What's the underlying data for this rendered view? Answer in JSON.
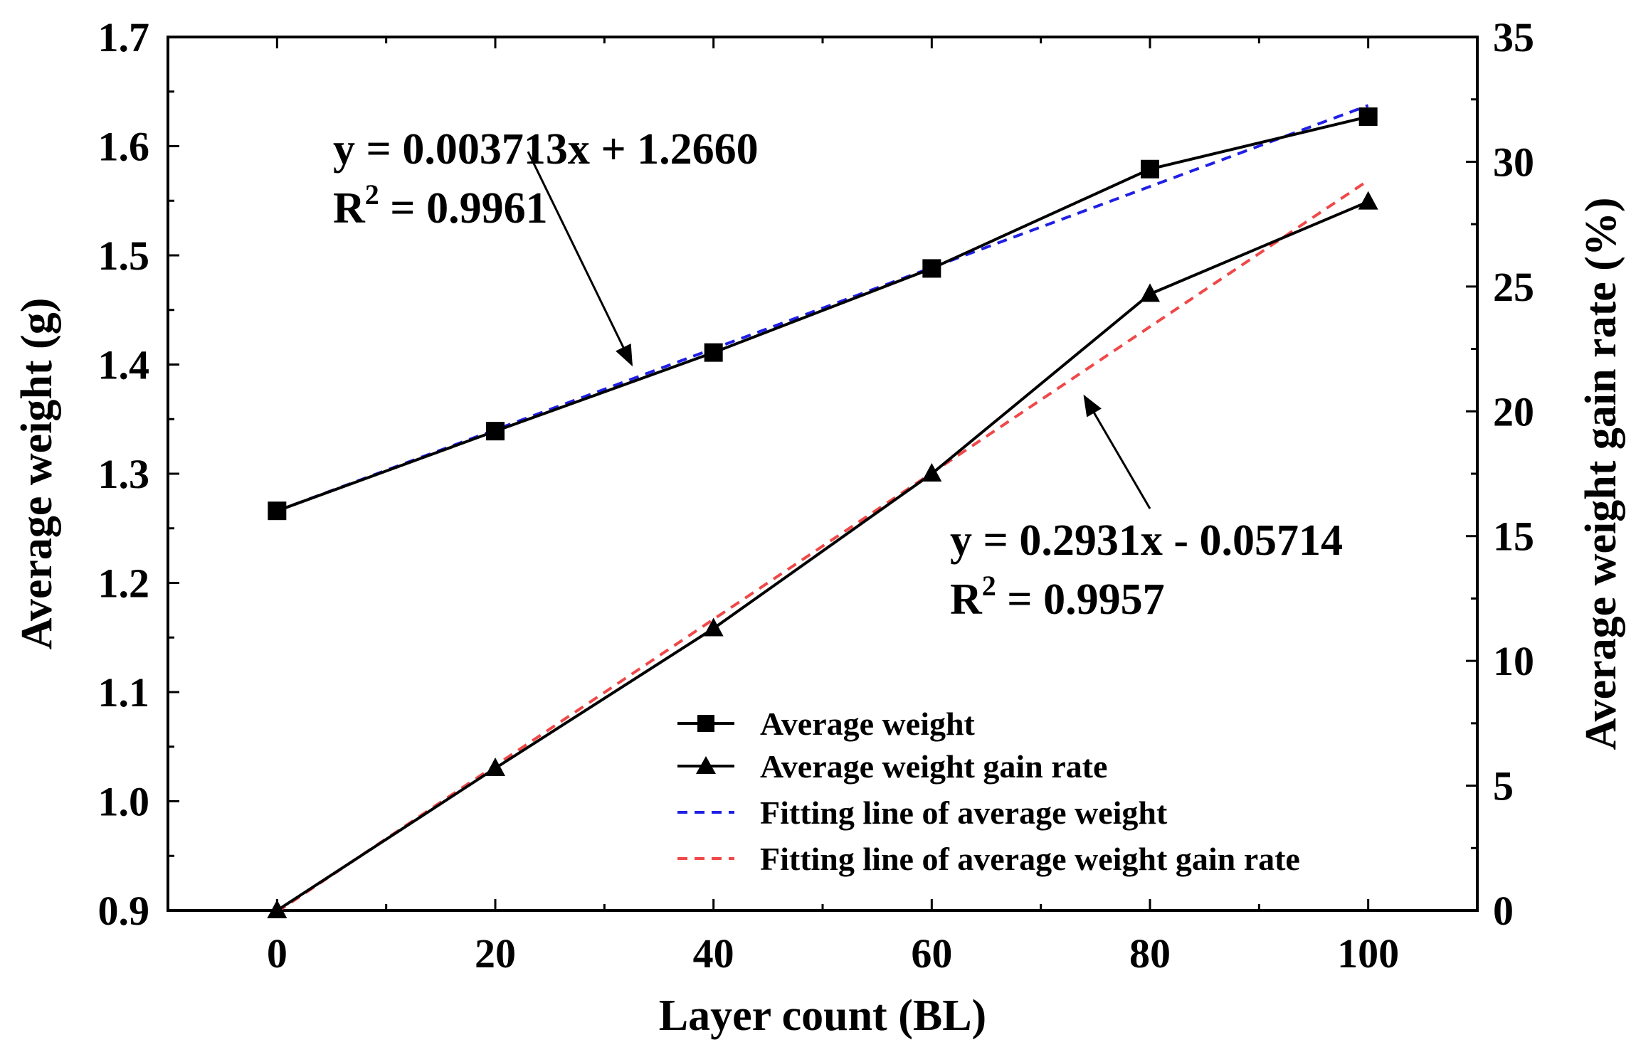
{
  "chart_data": {
    "type": "line",
    "xlabel": "Layer count (BL)",
    "ylabel": "Average weight (g)",
    "y2label": "Average weight gain rate (%)",
    "xlim": [
      -10,
      110
    ],
    "ylim": [
      0.9,
      1.7
    ],
    "y2lim": [
      0,
      35
    ],
    "x_ticks": [
      0,
      20,
      40,
      60,
      80,
      100
    ],
    "y_ticks": [
      "0.9",
      "1.0",
      "1.1",
      "1.2",
      "1.3",
      "1.4",
      "1.5",
      "1.6",
      "1.7"
    ],
    "y2_ticks": [
      "0",
      "5",
      "10",
      "15",
      "20",
      "25",
      "30",
      "35"
    ],
    "series": [
      {
        "name": "Average weight",
        "axis": "left",
        "marker": "square",
        "color": "#000000",
        "x": [
          0,
          20,
          40,
          60,
          80,
          100
        ],
        "values": [
          1.266,
          1.339,
          1.411,
          1.488,
          1.579,
          1.627
        ]
      },
      {
        "name": "Average weight gain rate",
        "axis": "right",
        "marker": "triangle",
        "color": "#000000",
        "x": [
          0,
          20,
          40,
          60,
          80,
          100
        ],
        "values": [
          0,
          5.7,
          11.3,
          17.5,
          24.7,
          28.4
        ]
      },
      {
        "name": "Fitting line of average weight",
        "axis": "left",
        "dashed": true,
        "color": "#1f1fe6",
        "slope": 0.003713,
        "intercept": 1.266,
        "x": [
          0,
          100
        ]
      },
      {
        "name": "Fitting line of average weight gain rate",
        "axis": "right",
        "dashed": true,
        "color": "#f04848",
        "slope": 0.2931,
        "intercept": -0.05714,
        "x": [
          0,
          100
        ]
      }
    ],
    "annotations": [
      {
        "name": "weight-fit",
        "line1": "y = 0.003713x + 1.2660",
        "r2_prefix": "R",
        "r2_sup": "2",
        "r2_value": " = 0.9961",
        "arrow_from": [
          23,
          1.595
        ],
        "arrow_to": [
          32.5,
          1.4
        ]
      },
      {
        "name": "gain-fit",
        "line1": "y = 0.2931x - 0.05714",
        "r2_prefix": "R",
        "r2_sup": "2",
        "r2_value": " = 0.9957",
        "arrow_from": [
          80,
          16.1
        ],
        "arrow_to": [
          74,
          20.6
        ]
      }
    ],
    "legend_position": "bottom-right"
  }
}
